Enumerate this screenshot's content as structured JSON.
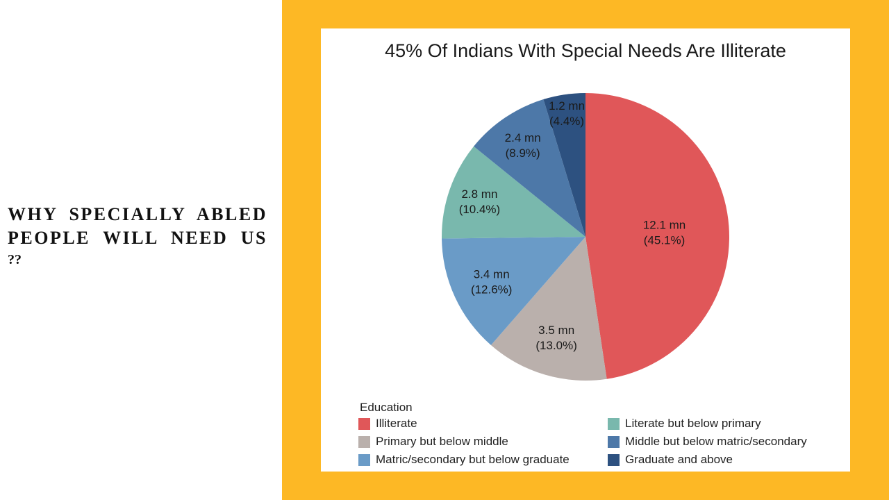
{
  "slide": {
    "heading": "WHY SPECIALLY ABLED PEOPLE WILL NEED US",
    "heading_suffix": "??"
  },
  "colors": {
    "background_panel": "#fdb825",
    "card": "#ffffff"
  },
  "chart_data": {
    "type": "pie",
    "title": "45% Of Indians With Special Needs Are Illiterate",
    "legend_title": "Education",
    "legend_position": "bottom",
    "slices": [
      {
        "category": "Illiterate",
        "value": 12.1,
        "value_label": "12.1 mn",
        "percent_label": "(45.1%)",
        "percent": 45.1,
        "color": "#e05759"
      },
      {
        "category": "Primary but below middle",
        "value": 3.5,
        "value_label": "3.5 mn",
        "percent_label": "(13.0%)",
        "percent": 13.0,
        "color": "#bab0ac"
      },
      {
        "category": "Matric/secondary but below graduate",
        "value": 3.4,
        "value_label": "3.4 mn",
        "percent_label": "(12.6%)",
        "percent": 12.6,
        "color": "#6a9bc7"
      },
      {
        "category": "Literate but below primary",
        "value": 2.8,
        "value_label": "2.8 mn",
        "percent_label": "(10.4%)",
        "percent": 10.4,
        "color": "#79b8ad"
      },
      {
        "category": "Middle but below matric/secondary",
        "value": 2.4,
        "value_label": "2.4 mn",
        "percent_label": "(8.9%)",
        "percent": 8.9,
        "color": "#4d78a8"
      },
      {
        "category": "Graduate and above",
        "value": 1.2,
        "value_label": "1.2 mn",
        "percent_label": "(4.4%)",
        "percent": 4.4,
        "color": "#2d5180"
      }
    ],
    "legend_order": [
      "Illiterate",
      "Literate but below primary",
      "Primary but below middle",
      "Middle but below matric/secondary",
      "Matric/secondary but below graduate",
      "Graduate and above"
    ]
  }
}
